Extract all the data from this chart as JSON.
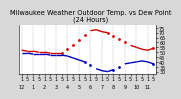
{
  "title": "Milwaukee Weather Outdoor Temp. vs Dew Point\n(24 Hours)",
  "bg_color": "#d8d8d8",
  "plot_bg": "#ffffff",
  "red_color": "#cc0000",
  "blue_color": "#0000bb",
  "black_color": "#000000",
  "temp_values": [
    52,
    51,
    51,
    50,
    50,
    49,
    49,
    49,
    53,
    57,
    62,
    68,
    72,
    73,
    71,
    70,
    67,
    64,
    60,
    57,
    55,
    53,
    52,
    54
  ],
  "dew_values": [
    49,
    49,
    48,
    48,
    48,
    47,
    47,
    47,
    46,
    44,
    42,
    40,
    37,
    33,
    31,
    30,
    32,
    35,
    38,
    39,
    40,
    41,
    40,
    38
  ],
  "hours": [
    0,
    1,
    2,
    3,
    4,
    5,
    6,
    7,
    8,
    9,
    10,
    11,
    12,
    13,
    14,
    15,
    16,
    17,
    18,
    19,
    20,
    21,
    22,
    23
  ],
  "ylim": [
    28,
    78
  ],
  "ytick_vals": [
    30,
    35,
    40,
    45,
    50,
    55,
    60,
    65,
    70,
    75
  ],
  "ytick_labels": [
    "30",
    "35",
    "40",
    "45",
    "50",
    "55",
    "60",
    "65",
    "70",
    "75"
  ],
  "grid_positions": [
    0,
    2,
    4,
    6,
    8,
    10,
    12,
    14,
    16,
    18,
    20,
    22
  ],
  "grid_color": "#999999",
  "title_fontsize": 4.8,
  "tick_fontsize": 3.5,
  "marker_size": 2.0
}
